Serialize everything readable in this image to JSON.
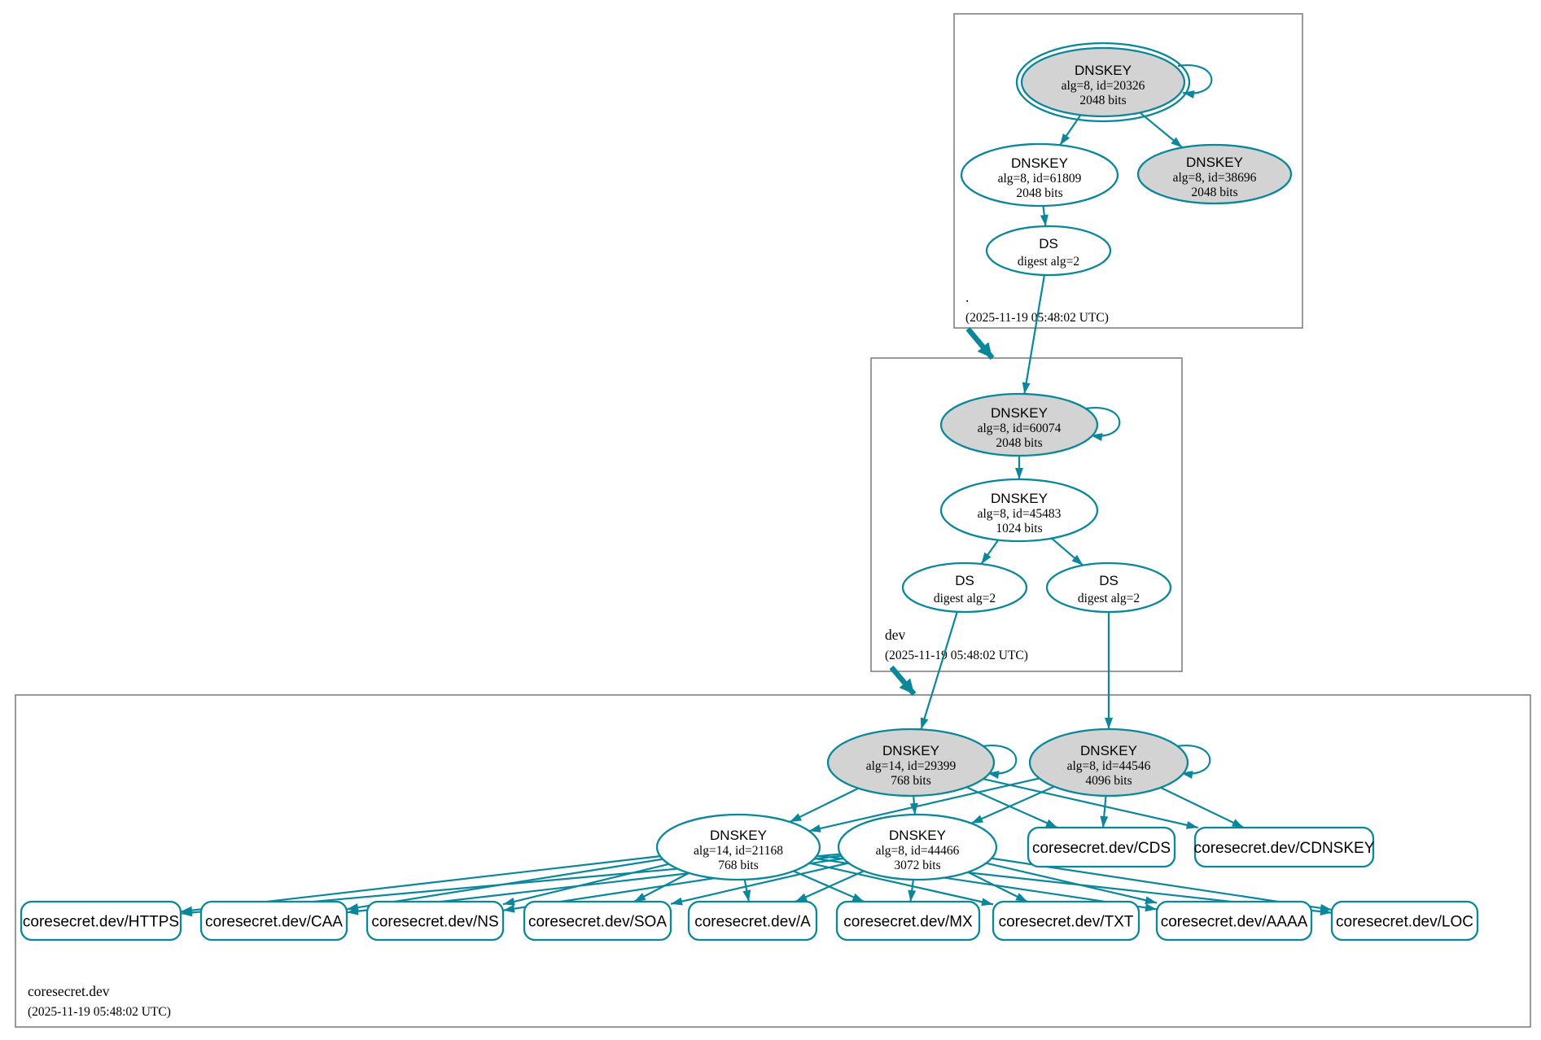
{
  "colors": {
    "secure": "#0a879a",
    "sep_key_fill": "#d3d3d3",
    "node_fill": "#ffffff",
    "zone_border": "#808080",
    "text": "#000000"
  },
  "zones": [
    {
      "id": "root",
      "label": ".",
      "timestamp": "(2025-11-19 05:48:02 UTC)"
    },
    {
      "id": "dev",
      "label": "dev",
      "timestamp": "(2025-11-19 05:48:02 UTC)"
    },
    {
      "id": "coresecret",
      "label": "coresecret.dev",
      "timestamp": "(2025-11-19 05:48:02 UTC)"
    }
  ],
  "nodes": [
    {
      "id": "root-ksk",
      "kind": "dnskey",
      "lines": [
        "DNSKEY",
        "alg=8, id=20326",
        "2048 bits"
      ],
      "sep": true,
      "trust_anchor": true,
      "self_signed": true
    },
    {
      "id": "root-zsk",
      "kind": "dnskey",
      "lines": [
        "DNSKEY",
        "alg=8, id=61809",
        "2048 bits"
      ],
      "sep": false
    },
    {
      "id": "root-ksk2",
      "kind": "dnskey",
      "lines": [
        "DNSKEY",
        "alg=8, id=38696",
        "2048 bits"
      ],
      "sep": true
    },
    {
      "id": "root-ds",
      "kind": "ds",
      "lines": [
        "DS",
        "digest alg=2"
      ]
    },
    {
      "id": "dev-ksk",
      "kind": "dnskey",
      "lines": [
        "DNSKEY",
        "alg=8, id=60074",
        "2048 bits"
      ],
      "sep": true,
      "self_signed": true
    },
    {
      "id": "dev-zsk",
      "kind": "dnskey",
      "lines": [
        "DNSKEY",
        "alg=8, id=45483",
        "1024 bits"
      ],
      "sep": false
    },
    {
      "id": "dev-ds1",
      "kind": "ds",
      "lines": [
        "DS",
        "digest alg=2"
      ]
    },
    {
      "id": "dev-ds2",
      "kind": "ds",
      "lines": [
        "DS",
        "digest alg=2"
      ]
    },
    {
      "id": "cs-ksk14",
      "kind": "dnskey",
      "lines": [
        "DNSKEY",
        "alg=14, id=29399",
        "768 bits"
      ],
      "sep": true,
      "self_signed": true
    },
    {
      "id": "cs-ksk8",
      "kind": "dnskey",
      "lines": [
        "DNSKEY",
        "alg=8, id=44546",
        "4096 bits"
      ],
      "sep": true,
      "self_signed": true
    },
    {
      "id": "cs-zsk14",
      "kind": "dnskey",
      "lines": [
        "DNSKEY",
        "alg=14, id=21168",
        "768 bits"
      ],
      "sep": false
    },
    {
      "id": "cs-zsk8",
      "kind": "dnskey",
      "lines": [
        "DNSKEY",
        "alg=8, id=44466",
        "3072 bits"
      ],
      "sep": false
    },
    {
      "id": "cds",
      "kind": "rrset",
      "lines": [
        "coresecret.dev/CDS"
      ]
    },
    {
      "id": "cdnskey",
      "kind": "rrset",
      "lines": [
        "coresecret.dev/CDNSKEY"
      ]
    },
    {
      "id": "https",
      "kind": "rrset",
      "lines": [
        "coresecret.dev/HTTPS"
      ]
    },
    {
      "id": "caa",
      "kind": "rrset",
      "lines": [
        "coresecret.dev/CAA"
      ]
    },
    {
      "id": "ns",
      "kind": "rrset",
      "lines": [
        "coresecret.dev/NS"
      ]
    },
    {
      "id": "soa",
      "kind": "rrset",
      "lines": [
        "coresecret.dev/SOA"
      ]
    },
    {
      "id": "a",
      "kind": "rrset",
      "lines": [
        "coresecret.dev/A"
      ]
    },
    {
      "id": "mx",
      "kind": "rrset",
      "lines": [
        "coresecret.dev/MX"
      ]
    },
    {
      "id": "txt",
      "kind": "rrset",
      "lines": [
        "coresecret.dev/TXT"
      ]
    },
    {
      "id": "aaaa",
      "kind": "rrset",
      "lines": [
        "coresecret.dev/AAAA"
      ]
    },
    {
      "id": "loc",
      "kind": "rrset",
      "lines": [
        "coresecret.dev/LOC"
      ]
    }
  ],
  "edges": [
    {
      "from": "root-ksk",
      "to": "root-zsk"
    },
    {
      "from": "root-ksk",
      "to": "root-ksk2"
    },
    {
      "from": "root-zsk",
      "to": "root-ds"
    },
    {
      "from": "root-ds",
      "to": "dev-ksk"
    },
    {
      "from": "dev-ksk",
      "to": "dev-zsk"
    },
    {
      "from": "dev-zsk",
      "to": "dev-ds1"
    },
    {
      "from": "dev-zsk",
      "to": "dev-ds2"
    },
    {
      "from": "dev-ds1",
      "to": "cs-ksk14"
    },
    {
      "from": "dev-ds2",
      "to": "cs-ksk8"
    },
    {
      "from": "cs-ksk14",
      "to": "cs-zsk14"
    },
    {
      "from": "cs-ksk14",
      "to": "cs-zsk8"
    },
    {
      "from": "cs-ksk14",
      "to": "cds"
    },
    {
      "from": "cs-ksk14",
      "to": "cdnskey"
    },
    {
      "from": "cs-ksk8",
      "to": "cs-zsk14"
    },
    {
      "from": "cs-ksk8",
      "to": "cs-zsk8"
    },
    {
      "from": "cs-ksk8",
      "to": "cds"
    },
    {
      "from": "cs-ksk8",
      "to": "cdnskey"
    },
    {
      "from": "cs-zsk14",
      "to": "https"
    },
    {
      "from": "cs-zsk14",
      "to": "caa"
    },
    {
      "from": "cs-zsk14",
      "to": "ns"
    },
    {
      "from": "cs-zsk14",
      "to": "soa"
    },
    {
      "from": "cs-zsk14",
      "to": "a"
    },
    {
      "from": "cs-zsk14",
      "to": "mx"
    },
    {
      "from": "cs-zsk14",
      "to": "txt"
    },
    {
      "from": "cs-zsk14",
      "to": "aaaa"
    },
    {
      "from": "cs-zsk14",
      "to": "loc"
    },
    {
      "from": "cs-zsk8",
      "to": "https"
    },
    {
      "from": "cs-zsk8",
      "to": "caa"
    },
    {
      "from": "cs-zsk8",
      "to": "ns"
    },
    {
      "from": "cs-zsk8",
      "to": "soa"
    },
    {
      "from": "cs-zsk8",
      "to": "a"
    },
    {
      "from": "cs-zsk8",
      "to": "mx"
    },
    {
      "from": "cs-zsk8",
      "to": "txt"
    },
    {
      "from": "cs-zsk8",
      "to": "aaaa"
    },
    {
      "from": "cs-zsk8",
      "to": "loc"
    }
  ],
  "delegations": [
    {
      "from": "root",
      "to": "dev"
    },
    {
      "from": "dev",
      "to": "coresecret"
    }
  ]
}
